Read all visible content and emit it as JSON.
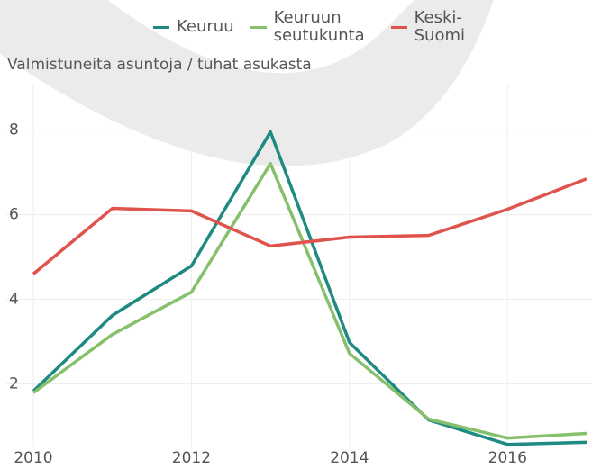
{
  "chart_data": {
    "type": "line",
    "y_axis_label": "Valmistuneita asuntoja / tuhat asukasta",
    "x": [
      2010,
      2011,
      2012,
      2013,
      2014,
      2015,
      2016,
      2017
    ],
    "series": [
      {
        "name": "Keuruu",
        "color": "#1f8a82",
        "values": [
          1.83,
          3.62,
          4.79,
          7.96,
          2.98,
          1.15,
          0.57,
          0.62
        ]
      },
      {
        "name": "Keuruun seutukunta",
        "color": "#86c06c",
        "values": [
          1.79,
          3.17,
          4.17,
          7.21,
          2.72,
          1.17,
          0.72,
          0.83
        ]
      },
      {
        "name": "Keski-Suomi",
        "color": "#e0524c",
        "values": [
          4.6,
          6.15,
          6.09,
          5.26,
          5.47,
          5.51,
          6.13,
          6.85
        ]
      }
    ],
    "xlim": [
      2010,
      2017
    ],
    "xticks": [
      2010,
      2012,
      2014,
      2016
    ],
    "ylim": [
      0.5,
      9.1
    ],
    "yticks": [
      2,
      4,
      6,
      8
    ],
    "grid": true,
    "legend": "top"
  }
}
